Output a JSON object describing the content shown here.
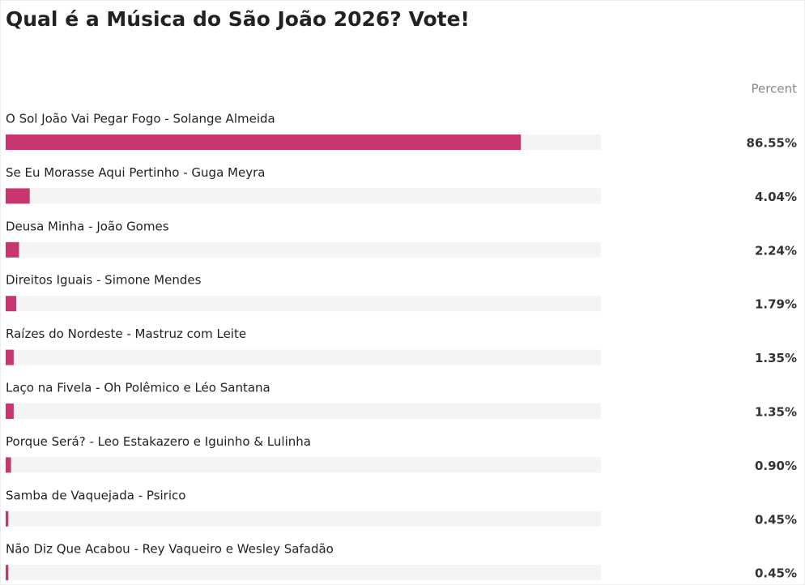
{
  "chart_data": {
    "type": "bar",
    "orientation": "horizontal",
    "title": "Qual é a Música do São João 2026? Vote!",
    "value_header": "Percent",
    "categories": [
      "O Sol João Vai Pegar Fogo - Solange Almeida",
      "Se Eu Morasse Aqui Pertinho - Guga Meyra",
      "Deusa Minha - João Gomes",
      "Direitos Iguais - Simone Mendes",
      "Raízes do Nordeste - Mastruz com Leite",
      "Laço na Fivela - Oh Polêmico e Léo Santana",
      "Porque Será? - Leo Estakazero e Iguinho & Lulinha",
      "Samba de Vaquejada - Psirico",
      "Não Diz Que Acabou - Rey Vaqueiro e Wesley Safadão"
    ],
    "values": [
      86.55,
      4.04,
      2.24,
      1.79,
      1.35,
      1.35,
      0.9,
      0.45,
      0.45
    ],
    "value_labels": [
      "86.55%",
      "4.04%",
      "2.24%",
      "1.79%",
      "1.35%",
      "1.35%",
      "0.90%",
      "0.45%",
      "0.45%"
    ],
    "color": "#c9366f",
    "track_color": "#f4f4f4",
    "xlim": [
      0,
      100
    ]
  }
}
